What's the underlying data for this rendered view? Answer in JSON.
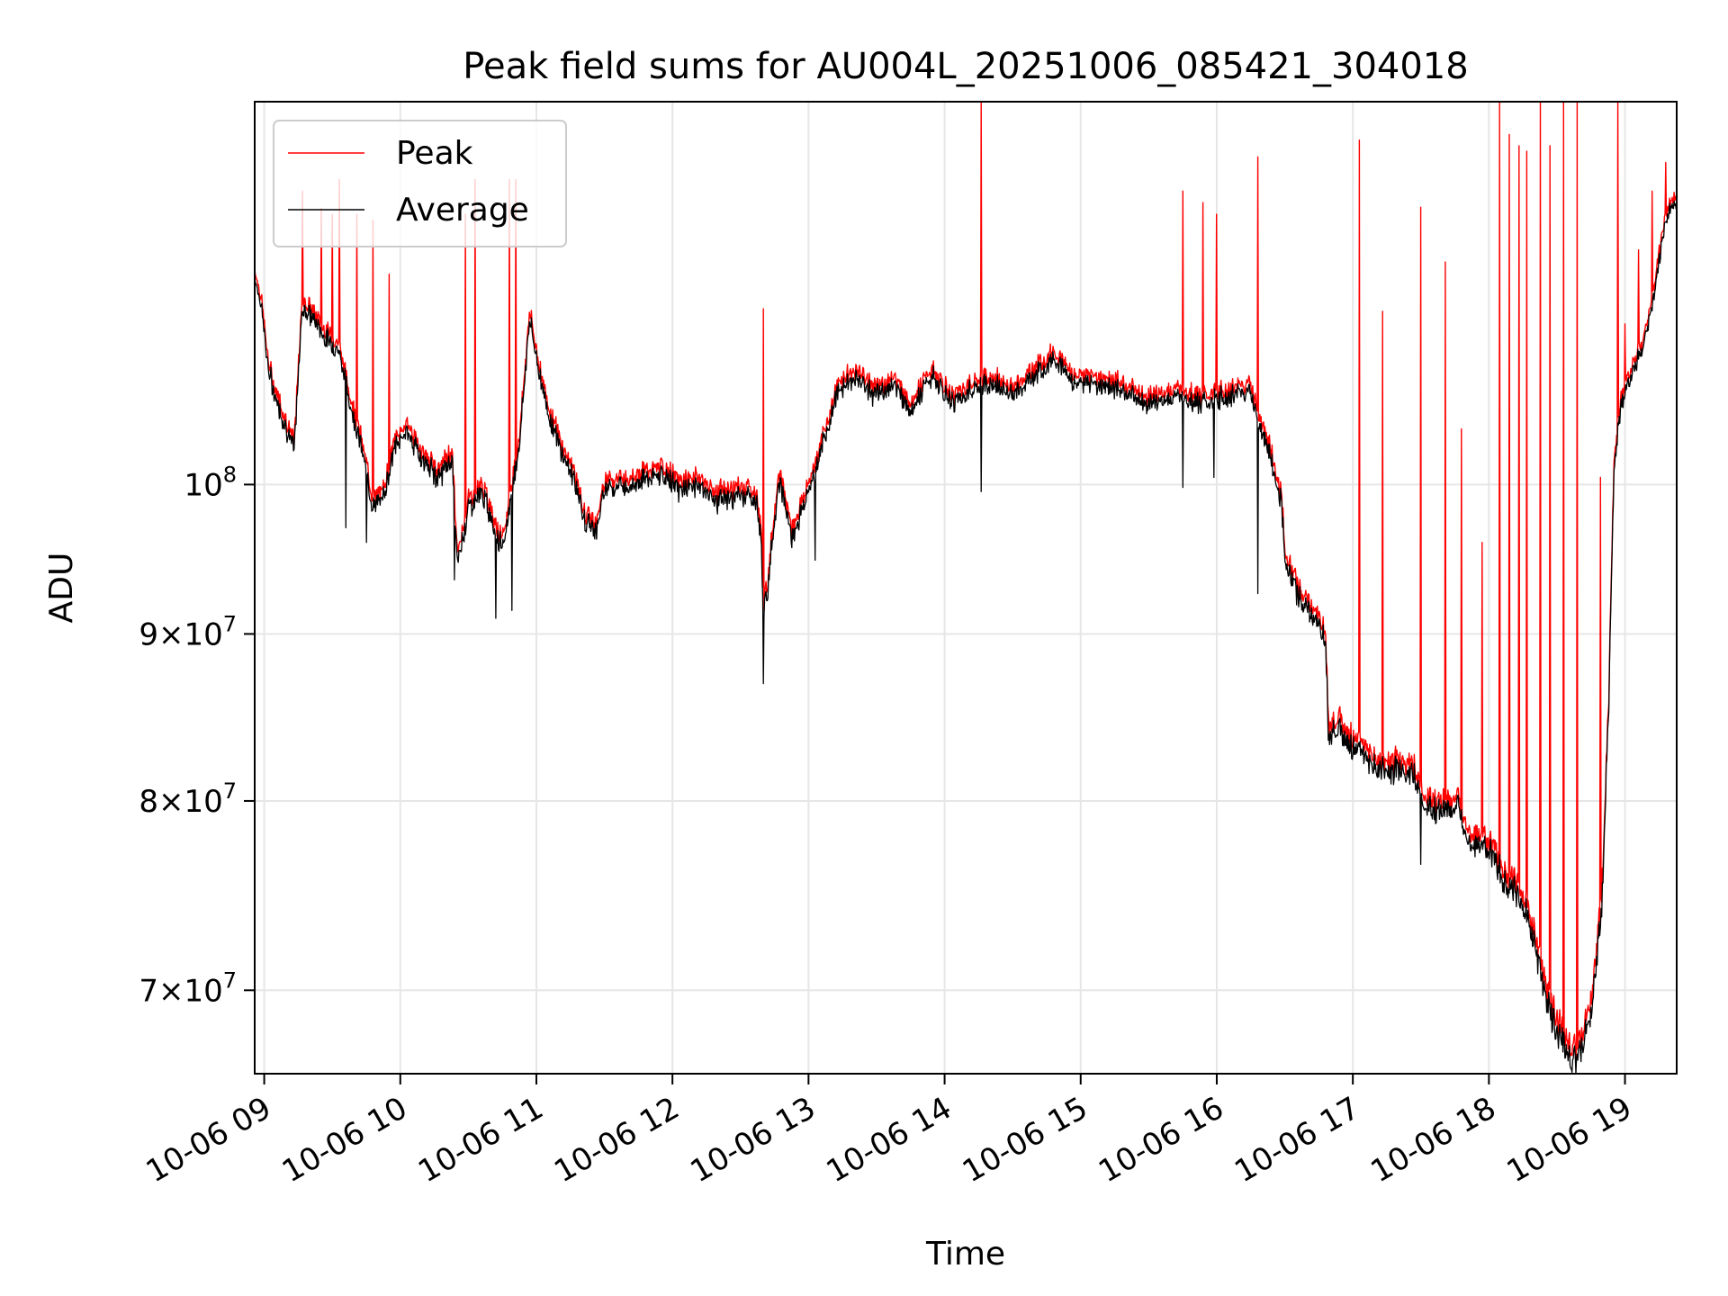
{
  "chart_data": {
    "type": "line",
    "title": "Peak field sums for AU004L_20251006_085421_304018",
    "xlabel": "Time",
    "ylabel": "ADU",
    "yscale": "log",
    "ylim": [
      66000000,
      131000000
    ],
    "xlim": [
      8.93,
      19.38
    ],
    "grid": true,
    "legend_position": "top-left",
    "x_ticks": [
      {
        "value": 9,
        "label": "10-06 09"
      },
      {
        "value": 10,
        "label": "10-06 10"
      },
      {
        "value": 11,
        "label": "10-06 11"
      },
      {
        "value": 12,
        "label": "10-06 12"
      },
      {
        "value": 13,
        "label": "10-06 13"
      },
      {
        "value": 14,
        "label": "10-06 14"
      },
      {
        "value": 15,
        "label": "10-06 15"
      },
      {
        "value": 16,
        "label": "10-06 16"
      },
      {
        "value": 17,
        "label": "10-06 17"
      },
      {
        "value": 18,
        "label": "10-06 18"
      },
      {
        "value": 19,
        "label": "10-06 19"
      }
    ],
    "y_ticks": [
      {
        "value": 70000000,
        "mantissa": "7",
        "exp": "7"
      },
      {
        "value": 80000000,
        "mantissa": "8",
        "exp": "7"
      },
      {
        "value": 90000000,
        "mantissa": "9",
        "exp": "7"
      },
      {
        "value": 100000000,
        "mantissa": "",
        "exp": "8"
      }
    ],
    "series": [
      {
        "name": "Peak",
        "color": "#ff0000",
        "baseline": [
          [
            8.93,
            116.5
          ],
          [
            8.98,
            114
          ],
          [
            9.03,
            109
          ],
          [
            9.08,
            107
          ],
          [
            9.15,
            105
          ],
          [
            9.22,
            103
          ],
          [
            9.28,
            114
          ],
          [
            9.36,
            113
          ],
          [
            9.45,
            111.5
          ],
          [
            9.55,
            110.5
          ],
          [
            9.62,
            107
          ],
          [
            9.72,
            103
          ],
          [
            9.8,
            99
          ],
          [
            9.87,
            99.5
          ],
          [
            9.95,
            103
          ],
          [
            10.05,
            104.5
          ],
          [
            10.15,
            102.5
          ],
          [
            10.28,
            101
          ],
          [
            10.38,
            102.5
          ],
          [
            10.42,
            95
          ],
          [
            10.5,
            99
          ],
          [
            10.6,
            100
          ],
          [
            10.7,
            97.5
          ],
          [
            10.75,
            96
          ],
          [
            10.82,
            100
          ],
          [
            10.88,
            104
          ],
          [
            10.95,
            113
          ],
          [
            11.0,
            110
          ],
          [
            11.08,
            106
          ],
          [
            11.18,
            103
          ],
          [
            11.28,
            101
          ],
          [
            11.35,
            98
          ],
          [
            11.45,
            97.5
          ],
          [
            11.5,
            100.5
          ],
          [
            11.65,
            100.5
          ],
          [
            11.8,
            101
          ],
          [
            11.95,
            101.2
          ],
          [
            12.05,
            100.2
          ],
          [
            12.2,
            100.6
          ],
          [
            12.3,
            99.5
          ],
          [
            12.45,
            99.7
          ],
          [
            12.55,
            99.9
          ],
          [
            12.62,
            99.2
          ],
          [
            12.65,
            97
          ],
          [
            12.67,
            92
          ],
          [
            12.7,
            93.5
          ],
          [
            12.78,
            101
          ],
          [
            12.88,
            97
          ],
          [
            12.98,
            99.5
          ],
          [
            13.08,
            102.5
          ],
          [
            13.15,
            105
          ],
          [
            13.22,
            107.5
          ],
          [
            13.35,
            108.5
          ],
          [
            13.5,
            107
          ],
          [
            13.62,
            108
          ],
          [
            13.75,
            106
          ],
          [
            13.9,
            108.5
          ],
          [
            14.05,
            106.5
          ],
          [
            14.2,
            107.5
          ],
          [
            14.35,
            108
          ],
          [
            14.5,
            107
          ],
          [
            14.65,
            108.5
          ],
          [
            14.8,
            110
          ],
          [
            14.95,
            108
          ],
          [
            15.1,
            108
          ],
          [
            15.3,
            107.5
          ],
          [
            15.5,
            106.5
          ],
          [
            15.7,
            107
          ],
          [
            15.9,
            106.5
          ],
          [
            16.1,
            107
          ],
          [
            16.25,
            107.5
          ],
          [
            16.32,
            104.5
          ],
          [
            16.4,
            102.5
          ],
          [
            16.48,
            99
          ],
          [
            16.5,
            95.5
          ],
          [
            16.6,
            93
          ],
          [
            16.72,
            91.5
          ],
          [
            16.8,
            90.2
          ],
          [
            16.82,
            84.5
          ],
          [
            16.9,
            85
          ],
          [
            16.95,
            83.8
          ],
          [
            17.05,
            83.6
          ],
          [
            17.15,
            82.5
          ],
          [
            17.3,
            82.3
          ],
          [
            17.45,
            82
          ],
          [
            17.52,
            80.5
          ],
          [
            17.6,
            80
          ],
          [
            17.7,
            80.2
          ],
          [
            17.78,
            80
          ],
          [
            17.85,
            78.5
          ],
          [
            17.95,
            78
          ],
          [
            18.02,
            77.5
          ],
          [
            18.1,
            76.5
          ],
          [
            18.2,
            75.5
          ],
          [
            18.3,
            74
          ],
          [
            18.38,
            71.5
          ],
          [
            18.45,
            69.5
          ],
          [
            18.52,
            68.5
          ],
          [
            18.58,
            67.5
          ],
          [
            18.65,
            67.2
          ],
          [
            18.72,
            68.5
          ],
          [
            18.78,
            71
          ],
          [
            18.83,
            75
          ],
          [
            18.88,
            86
          ],
          [
            18.92,
            102
          ],
          [
            18.97,
            106
          ],
          [
            19.05,
            109
          ],
          [
            19.12,
            110
          ],
          [
            19.2,
            114
          ],
          [
            19.3,
            121
          ],
          [
            19.38,
            123
          ]
        ],
        "spikes": [
          [
            9.28,
            123
          ],
          [
            9.42,
            121.5
          ],
          [
            9.5,
            121
          ],
          [
            9.55,
            124
          ],
          [
            9.68,
            121
          ],
          [
            9.8,
            120.5
          ],
          [
            9.92,
            116
          ],
          [
            10.48,
            121
          ],
          [
            10.55,
            124
          ],
          [
            10.8,
            124
          ],
          [
            10.85,
            124
          ],
          [
            12.67,
            113.2
          ],
          [
            14.27,
            135
          ],
          [
            15.75,
            123
          ],
          [
            15.9,
            122
          ],
          [
            16.0,
            121
          ],
          [
            16.3,
            126
          ],
          [
            17.05,
            127.5
          ],
          [
            17.22,
            113
          ],
          [
            17.5,
            121.6
          ],
          [
            17.68,
            117
          ],
          [
            17.8,
            104
          ],
          [
            17.95,
            96
          ],
          [
            18.08,
            133.5
          ],
          [
            18.15,
            128
          ],
          [
            18.22,
            127
          ],
          [
            18.28,
            126.5
          ],
          [
            18.38,
            140
          ],
          [
            18.45,
            127
          ],
          [
            18.55,
            132.5
          ],
          [
            18.65,
            139
          ],
          [
            18.82,
            100.5
          ],
          [
            18.95,
            141
          ],
          [
            19.0,
            112
          ],
          [
            19.1,
            118
          ],
          [
            19.2,
            123
          ],
          [
            19.3,
            125.5
          ]
        ]
      },
      {
        "name": "Average",
        "color": "#000000",
        "offset": -0.6,
        "dips": [
          [
            9.6,
            97
          ],
          [
            9.75,
            96
          ],
          [
            10.4,
            93.5
          ],
          [
            10.7,
            91
          ],
          [
            10.82,
            91.5
          ],
          [
            12.67,
            86.9
          ],
          [
            13.05,
            94.8
          ],
          [
            14.27,
            99.5
          ],
          [
            15.75,
            99.8
          ],
          [
            15.98,
            100.5
          ],
          [
            16.3,
            92.6
          ],
          [
            16.82,
            83.5
          ],
          [
            17.5,
            76.5
          ],
          [
            18.58,
            66.6
          ]
        ]
      }
    ]
  }
}
